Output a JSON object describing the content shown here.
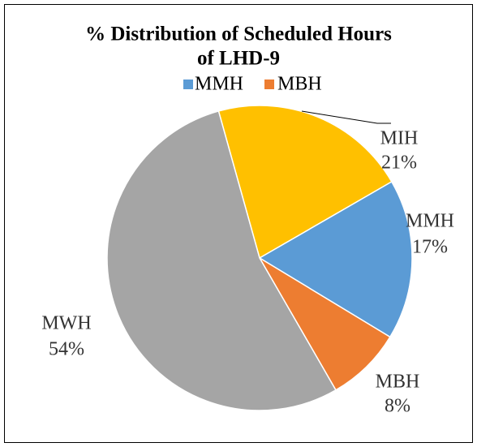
{
  "chart_data": {
    "type": "pie",
    "title_lines": [
      "% Distribution of Scheduled Hours",
      "of  LHD-9"
    ],
    "categories": [
      "MIH",
      "MMH",
      "MBH",
      "MWH"
    ],
    "values": [
      21,
      17,
      8,
      54
    ],
    "value_labels": [
      "21%",
      "17%",
      "8%",
      "54%"
    ],
    "colors": [
      "#FFC000",
      "#5B9BD5",
      "#ED7D31",
      "#A5A5A5"
    ],
    "legend": [
      {
        "name": "MMH",
        "color": "#5B9BD5"
      },
      {
        "name": "MBH",
        "color": "#ED7D31"
      }
    ]
  }
}
